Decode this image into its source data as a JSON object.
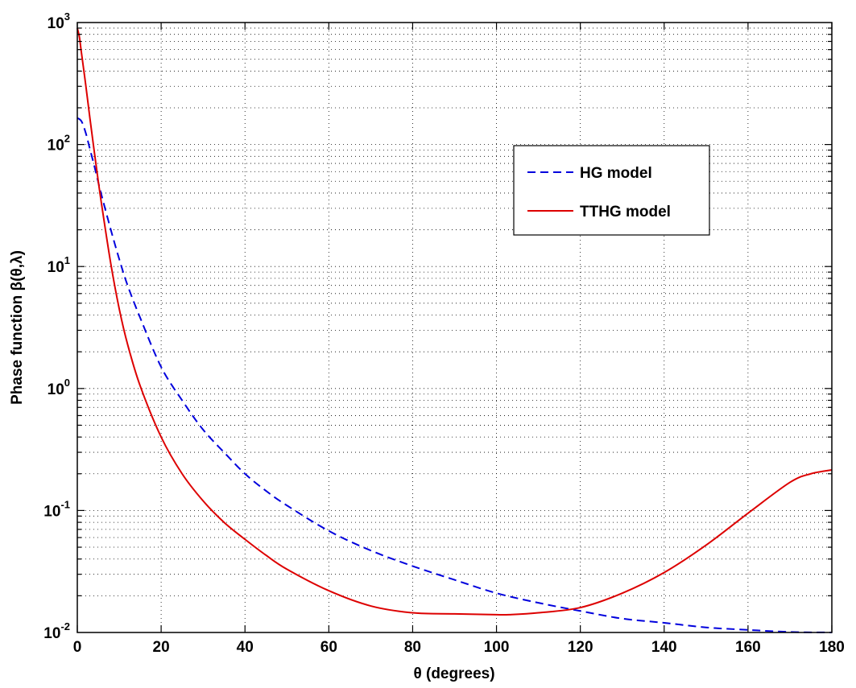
{
  "chart_data": {
    "type": "line",
    "xlabel": "θ (degrees)",
    "ylabel": "Phase function β(θ,λ)",
    "xlim": [
      0,
      180
    ],
    "ylim": [
      0.01,
      1000
    ],
    "yscale": "log",
    "x_ticks": [
      "0",
      "20",
      "40",
      "60",
      "80",
      "100",
      "120",
      "140",
      "160",
      "180"
    ],
    "y_ticks": [
      {
        "base": "10",
        "exp": "-2"
      },
      {
        "base": "10",
        "exp": "-1"
      },
      {
        "base": "10",
        "exp": "0"
      },
      {
        "base": "10",
        "exp": "1"
      },
      {
        "base": "10",
        "exp": "2"
      },
      {
        "base": "10",
        "exp": "3"
      }
    ],
    "grid": true,
    "grid_style": "dotted",
    "legend_position": "upper-right",
    "series": [
      {
        "name": "HG model",
        "color": "#0000dd",
        "style": "dashed",
        "x": [
          0,
          1,
          2,
          3,
          4,
          5,
          6,
          8,
          10,
          12,
          15,
          20,
          25,
          30,
          35,
          40,
          45,
          50,
          60,
          70,
          80,
          90,
          100,
          110,
          120,
          130,
          140,
          150,
          160,
          170,
          180
        ],
        "y": [
          165,
          155,
          125,
          92,
          68,
          49,
          36,
          20,
          11.5,
          7.0,
          3.8,
          1.5,
          0.8,
          0.46,
          0.3,
          0.2,
          0.145,
          0.11,
          0.068,
          0.047,
          0.035,
          0.027,
          0.021,
          0.0175,
          0.015,
          0.013,
          0.012,
          0.011,
          0.0105,
          0.0101,
          0.01
        ]
      },
      {
        "name": "TTHG model",
        "color": "#dd0000",
        "style": "solid",
        "x": [
          0,
          0.5,
          1,
          2,
          3,
          4,
          5,
          6,
          8,
          10,
          12,
          15,
          20,
          25,
          30,
          35,
          40,
          45,
          50,
          60,
          70,
          80,
          90,
          100,
          103,
          110,
          120,
          130,
          140,
          150,
          160,
          170,
          175,
          180
        ],
        "y": [
          900,
          760,
          560,
          310,
          165,
          90,
          50,
          29,
          10.5,
          4.5,
          2.3,
          1.05,
          0.4,
          0.2,
          0.12,
          0.08,
          0.058,
          0.043,
          0.033,
          0.022,
          0.0165,
          0.0145,
          0.0142,
          0.014,
          0.014,
          0.0145,
          0.016,
          0.021,
          0.031,
          0.052,
          0.095,
          0.17,
          0.2,
          0.215
        ]
      }
    ]
  }
}
